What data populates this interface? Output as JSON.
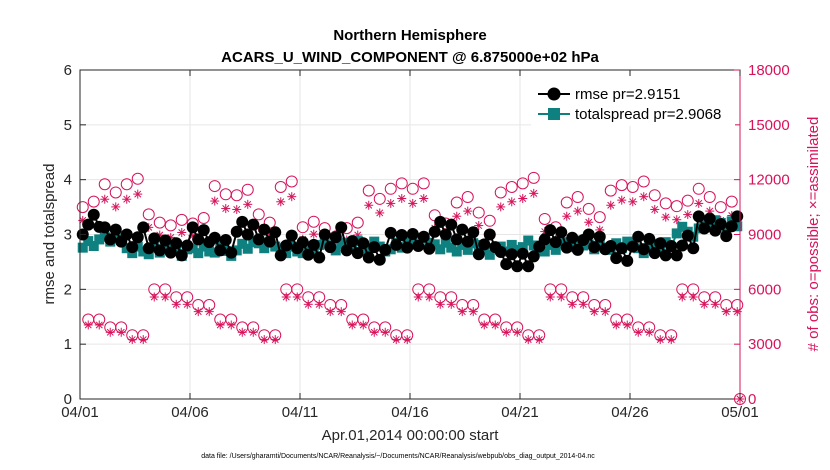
{
  "chart_data": {
    "type": "line",
    "title": [
      "Northern Hemisphere",
      "ACARS_U_WIND_COMPONENT @ 6.875000e+02 hPa"
    ],
    "xlabel": "Apr.01,2014 00:00:00 start",
    "ylabel_left": "rmse and totalspread",
    "ylabel_right": "# of obs: o=possible; ×=assimilated",
    "footnote": "data file: /Users/gharamti/Documents/NCAR/Reanalysis/~/Documents/NCAR/Reanalysis/webpub/obs_diag_output_2014-04.nc",
    "x_ticks": [
      "04/01",
      "04/06",
      "04/11",
      "04/16",
      "04/21",
      "04/26",
      "05/01"
    ],
    "x_tick_days": [
      0,
      5,
      10,
      15,
      20,
      25,
      30
    ],
    "xlim_days": [
      0,
      30
    ],
    "ylim_left": [
      0,
      6
    ],
    "yticks_left": [
      "0",
      "1",
      "2",
      "3",
      "4",
      "5",
      "6"
    ],
    "ylim_right": [
      0,
      18000
    ],
    "yticks_right": [
      "0",
      "3000",
      "6000",
      "9000",
      "12000",
      "15000",
      "18000"
    ],
    "legend_position": "top-right",
    "grid": true,
    "colors": {
      "rmse": "#000000",
      "totalspread": "#0f8080",
      "obs": "#d6145c",
      "grid": "#e6e6e6"
    },
    "legend": [
      "rmse pr=2.9151",
      "totalspread pr=2.9068"
    ],
    "pattern_left": {
      "rmse": [
        3.18,
        3.0,
        2.95,
        2.8,
        2.8,
        2.95,
        2.85,
        3.05,
        3.0,
        2.8,
        2.72,
        2.95,
        2.75,
        2.72,
        2.85,
        2.92,
        3.05,
        3.0,
        2.82,
        2.55,
        2.6,
        2.95,
        2.9,
        2.82,
        2.7,
        2.78,
        2.75,
        2.8,
        3.2,
        3.15
      ],
      "totalspread": [
        2.85,
        2.9,
        2.75,
        2.7,
        2.7,
        2.72,
        2.7,
        2.8,
        2.78,
        2.75,
        2.72,
        2.8,
        2.82,
        2.78,
        2.82,
        2.85,
        2.82,
        2.75,
        2.72,
        2.75,
        2.8,
        2.78,
        2.8,
        2.82,
        2.78,
        2.75,
        2.8,
        3.05,
        3.2,
        3.15
      ]
    },
    "pattern_obs_k": [
      10.5,
      11.3,
      11.6,
      9.5,
      9.2,
      9.6,
      11.2,
      11.0,
      9.5,
      11.3,
      9.4,
      8.9,
      9.2,
      10.8,
      11.2,
      11.5,
      9.6,
      10.6,
      9.6,
      11.0,
      11.8,
      9.4,
      10.6,
      9.8,
      11.1,
      11.6,
      10.7,
      10.4,
      10.9,
      10.2
    ],
    "series": [
      {
        "name": "rmse pr=2.9151",
        "axis": "left",
        "x_days": [],
        "values": []
      },
      {
        "name": "totalspread pr=2.9068",
        "axis": "left",
        "x_days": [],
        "values": []
      },
      {
        "name": "",
        "axis": "right",
        "marker": "circle",
        "x_days": [],
        "values": []
      },
      {
        "name": "",
        "axis": "right",
        "marker": "star",
        "x_days": [],
        "values": []
      }
    ]
  }
}
